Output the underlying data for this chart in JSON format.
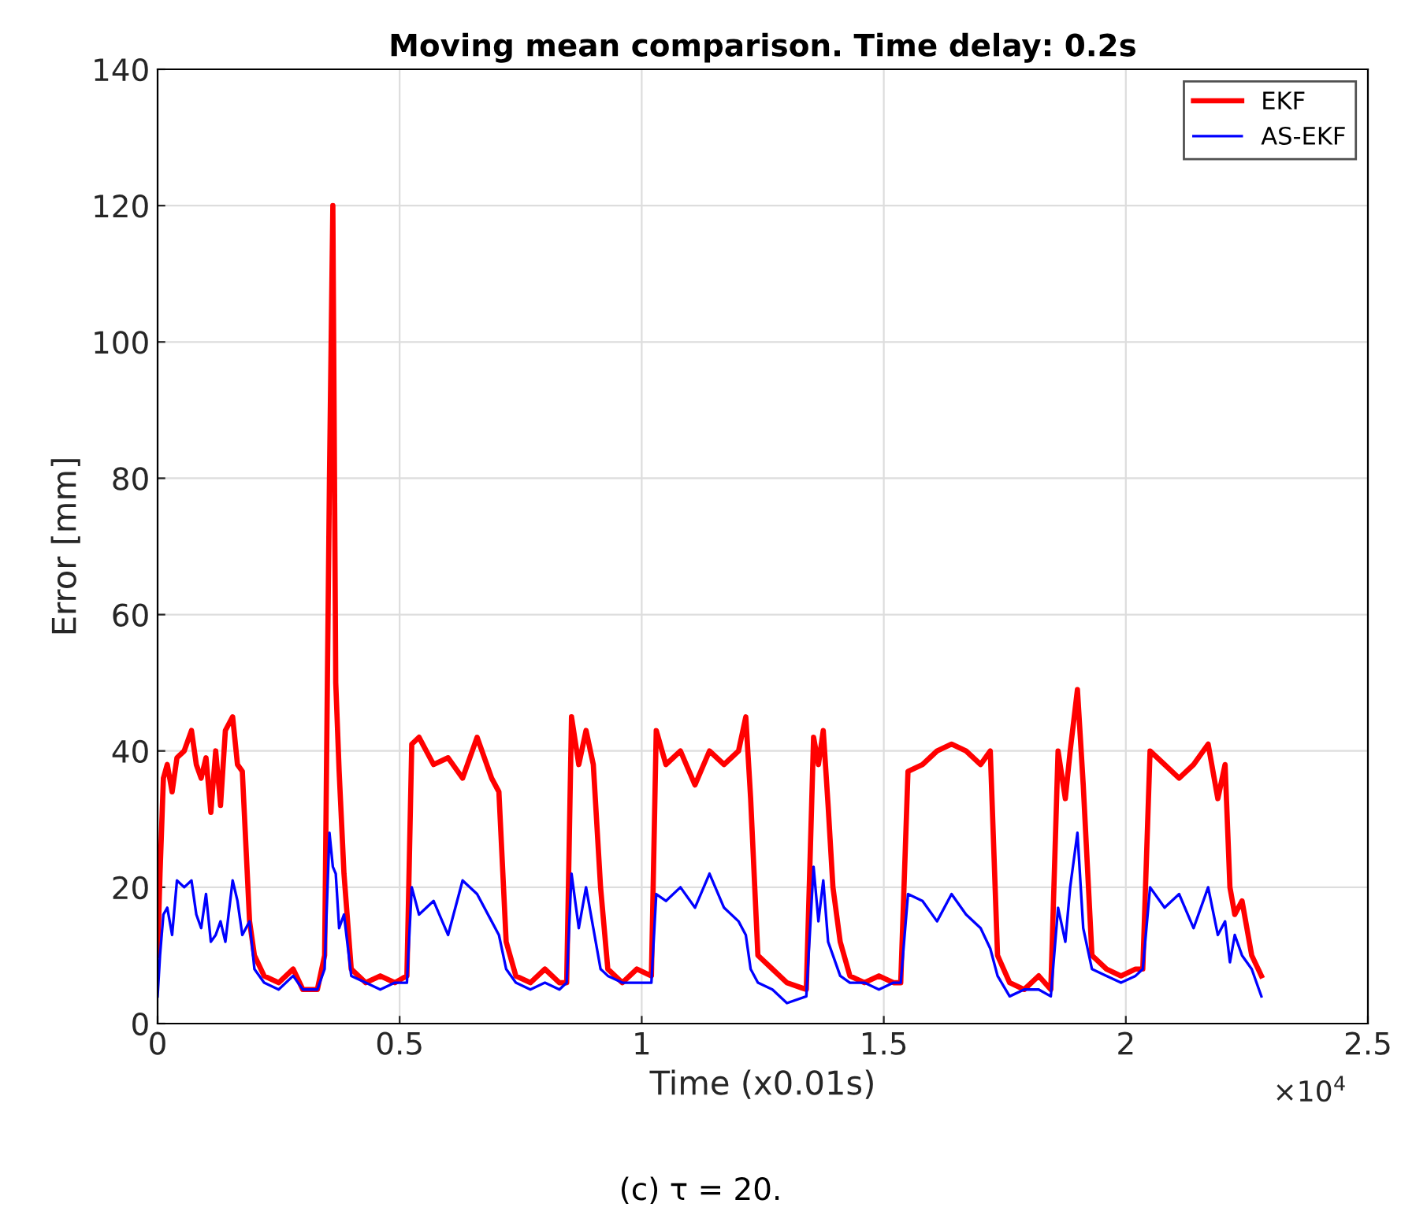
{
  "chart_data": {
    "type": "line",
    "title": "Moving mean comparison. Time delay: 0.2s",
    "xlabel": "Time (x0.01s)",
    "ylabel": "Error [mm]",
    "annotations": [
      "×10$^{4}$",
      "(c) τ = 20."
    ],
    "xlim": [
      0,
      2.5
    ],
    "xticks": [
      0,
      0.5,
      1,
      1.5,
      2,
      2.5
    ],
    "ylim": [
      0,
      140
    ],
    "yticks": [
      0,
      20,
      40,
      60,
      80,
      100,
      120,
      140
    ],
    "grid": true,
    "legend": "top right",
    "series": [
      {
        "name": "EKF",
        "color": "#ff0000",
        "x": [
          0,
          0.005,
          0.012,
          0.02,
          0.03,
          0.04,
          0.055,
          0.07,
          0.08,
          0.09,
          0.1,
          0.11,
          0.12,
          0.13,
          0.14,
          0.155,
          0.165,
          0.175,
          0.19,
          0.2,
          0.22,
          0.25,
          0.28,
          0.3,
          0.33,
          0.345,
          0.355,
          0.362,
          0.368,
          0.375,
          0.385,
          0.4,
          0.43,
          0.46,
          0.49,
          0.515,
          0.525,
          0.54,
          0.57,
          0.6,
          0.63,
          0.66,
          0.69,
          0.705,
          0.72,
          0.74,
          0.77,
          0.8,
          0.83,
          0.845,
          0.855,
          0.87,
          0.885,
          0.9,
          0.915,
          0.93,
          0.96,
          0.99,
          1.02,
          1.03,
          1.05,
          1.08,
          1.11,
          1.14,
          1.17,
          1.2,
          1.215,
          1.225,
          1.24,
          1.27,
          1.3,
          1.34,
          1.355,
          1.365,
          1.375,
          1.385,
          1.395,
          1.41,
          1.43,
          1.46,
          1.49,
          1.52,
          1.535,
          1.55,
          1.58,
          1.61,
          1.64,
          1.67,
          1.7,
          1.72,
          1.735,
          1.76,
          1.79,
          1.82,
          1.845,
          1.86,
          1.875,
          1.885,
          1.9,
          1.912,
          1.93,
          1.96,
          1.99,
          2.02,
          2.035,
          2.05,
          2.08,
          2.11,
          2.14,
          2.17,
          2.19,
          2.205,
          2.215,
          2.225,
          2.24,
          2.26,
          2.28
        ],
        "values": [
          10,
          22,
          36,
          38,
          34,
          39,
          40,
          43,
          38,
          36,
          39,
          31,
          40,
          32,
          43,
          45,
          38,
          37,
          15,
          10,
          7,
          6,
          8,
          5,
          5,
          10,
          80,
          120,
          50,
          37,
          22,
          8,
          6,
          7,
          6,
          7,
          41,
          42,
          38,
          39,
          36,
          42,
          36,
          34,
          12,
          7,
          6,
          8,
          6,
          6,
          45,
          38,
          43,
          38,
          20,
          8,
          6,
          8,
          7,
          43,
          38,
          40,
          35,
          40,
          38,
          40,
          45,
          33,
          10,
          8,
          6,
          5,
          42,
          38,
          43,
          32,
          20,
          12,
          7,
          6,
          7,
          6,
          6,
          37,
          38,
          40,
          41,
          40,
          38,
          40,
          10,
          6,
          5,
          7,
          5,
          40,
          33,
          40,
          49,
          35,
          10,
          8,
          7,
          8,
          8,
          40,
          38,
          36,
          38,
          41,
          33,
          38,
          20,
          16,
          18,
          10,
          7
        ]
      },
      {
        "name": "AS-EKF",
        "color": "#0000ff",
        "x": [
          0,
          0.005,
          0.012,
          0.02,
          0.03,
          0.04,
          0.055,
          0.07,
          0.08,
          0.09,
          0.1,
          0.11,
          0.12,
          0.13,
          0.14,
          0.155,
          0.165,
          0.175,
          0.19,
          0.2,
          0.22,
          0.25,
          0.28,
          0.3,
          0.33,
          0.345,
          0.355,
          0.362,
          0.368,
          0.375,
          0.385,
          0.4,
          0.43,
          0.46,
          0.49,
          0.515,
          0.525,
          0.54,
          0.57,
          0.6,
          0.63,
          0.66,
          0.69,
          0.705,
          0.72,
          0.74,
          0.77,
          0.8,
          0.83,
          0.845,
          0.855,
          0.87,
          0.885,
          0.9,
          0.915,
          0.93,
          0.96,
          0.99,
          1.02,
          1.03,
          1.05,
          1.08,
          1.11,
          1.14,
          1.17,
          1.2,
          1.215,
          1.225,
          1.24,
          1.27,
          1.3,
          1.34,
          1.355,
          1.365,
          1.375,
          1.385,
          1.395,
          1.41,
          1.43,
          1.46,
          1.49,
          1.52,
          1.535,
          1.55,
          1.58,
          1.61,
          1.64,
          1.67,
          1.7,
          1.72,
          1.735,
          1.76,
          1.79,
          1.82,
          1.845,
          1.86,
          1.875,
          1.885,
          1.9,
          1.912,
          1.93,
          1.96,
          1.99,
          2.02,
          2.035,
          2.05,
          2.08,
          2.11,
          2.14,
          2.17,
          2.19,
          2.205,
          2.215,
          2.225,
          2.24,
          2.26,
          2.28
        ],
        "values": [
          4,
          10,
          16,
          17,
          13,
          21,
          20,
          21,
          16,
          14,
          19,
          12,
          13,
          15,
          12,
          21,
          18,
          13,
          15,
          8,
          6,
          5,
          7,
          5,
          5,
          8,
          28,
          23,
          22,
          14,
          16,
          7,
          6,
          5,
          6,
          6,
          20,
          16,
          18,
          13,
          21,
          19,
          15,
          13,
          8,
          6,
          5,
          6,
          5,
          6,
          22,
          14,
          20,
          14,
          8,
          7,
          6,
          6,
          6,
          19,
          18,
          20,
          17,
          22,
          17,
          15,
          13,
          8,
          6,
          5,
          3,
          4,
          23,
          15,
          21,
          12,
          10,
          7,
          6,
          6,
          5,
          6,
          6,
          19,
          18,
          15,
          19,
          16,
          14,
          11,
          7,
          4,
          5,
          5,
          4,
          17,
          12,
          20,
          28,
          14,
          8,
          7,
          6,
          7,
          8,
          20,
          17,
          19,
          14,
          20,
          13,
          15,
          9,
          13,
          10,
          8,
          4
        ]
      }
    ]
  }
}
